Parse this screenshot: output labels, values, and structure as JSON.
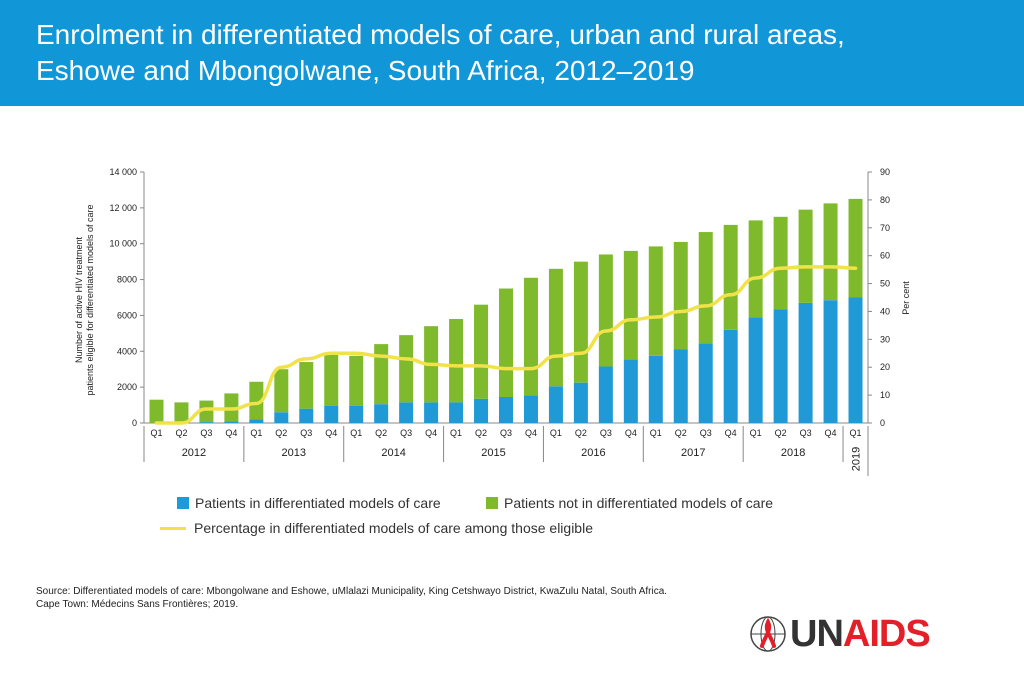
{
  "header": {
    "title_line1": "Enrolment in differentiated models of care, urban and rural areas,",
    "title_line2": "Eshowe and Mbongolwane, South Africa, 2012–2019"
  },
  "colors": {
    "header_bg": "#1196d8",
    "in_dmoc": "#1f9ad6",
    "not_in_dmoc": "#7fba2c",
    "percentage_line": "#f2e24a",
    "logo_red": "#e3202a",
    "logo_dark": "#333333"
  },
  "chart_data": {
    "type": "bar",
    "stacked": true,
    "categories": [
      "Q1",
      "Q2",
      "Q3",
      "Q4",
      "Q1",
      "Q2",
      "Q3",
      "Q4",
      "Q1",
      "Q2",
      "Q3",
      "Q4",
      "Q1",
      "Q2",
      "Q3",
      "Q4",
      "Q1",
      "Q2",
      "Q3",
      "Q4",
      "Q1",
      "Q2",
      "Q3",
      "Q4",
      "Q1",
      "Q2",
      "Q3",
      "Q4",
      "Q1"
    ],
    "year_groups": [
      {
        "label": "2012",
        "count": 4
      },
      {
        "label": "2013",
        "count": 4
      },
      {
        "label": "2014",
        "count": 4
      },
      {
        "label": "2015",
        "count": 4
      },
      {
        "label": "2016",
        "count": 4
      },
      {
        "label": "2017",
        "count": 4
      },
      {
        "label": "2018",
        "count": 4
      },
      {
        "label": "2019",
        "count": 1
      }
    ],
    "series": [
      {
        "name": "Patients in differentiated models of care",
        "axis": "left",
        "values": [
          0,
          0,
          50,
          100,
          200,
          600,
          800,
          950,
          950,
          1050,
          1150,
          1150,
          1150,
          1350,
          1450,
          1550,
          2050,
          2250,
          3150,
          3550,
          3750,
          4100,
          4450,
          5200,
          5900,
          6350,
          6700,
          6850,
          7000
        ]
      },
      {
        "name": "Patients not in differentiated models of care",
        "axis": "left",
        "values": [
          1300,
          1150,
          1200,
          1550,
          2100,
          2400,
          2600,
          2850,
          2800,
          3350,
          3750,
          4250,
          4650,
          5250,
          6050,
          6550,
          6550,
          6750,
          6250,
          6050,
          6100,
          6000,
          6200,
          5850,
          5400,
          5150,
          5200,
          5400,
          5500
        ]
      },
      {
        "name": "Percentage in differentiated models of care among those eligible",
        "axis": "right",
        "type": "line",
        "values": [
          0,
          0,
          5,
          5,
          7,
          20,
          23,
          25,
          25,
          24,
          23,
          21,
          20.5,
          20.5,
          19.5,
          19.5,
          24,
          25,
          33,
          37,
          38,
          40,
          42,
          46,
          52,
          55.5,
          56,
          56,
          55.5
        ]
      }
    ],
    "y_left": {
      "label": "Number of active HIV treatment patients eligible for differentiated models of care",
      "ylim": [
        0,
        14000
      ],
      "ticks": [
        "0",
        "2000",
        "4000",
        "6000",
        "8000",
        "10 000",
        "12 000",
        "14 000"
      ]
    },
    "y_right": {
      "label": "Per cent",
      "ylim": [
        0,
        90
      ],
      "ticks": [
        "0",
        "10",
        "20",
        "30",
        "40",
        "50",
        "60",
        "70",
        "80",
        "90"
      ]
    },
    "legend": {
      "in_label": "Patients in differentiated models of care",
      "not_in_label": "Patients not in differentiated models of care",
      "line_label": "Percentage in differentiated models of care among those eligible"
    }
  },
  "source": {
    "line1": "Source: Differentiated models of care: Mbongolwane and Eshowe, uMlalazi Municipality, King Cetshwayo District, KwaZulu Natal, South Africa.",
    "line2": "Cape Town: Médecins Sans Frontières; 2019."
  },
  "logo": {
    "part1": "UN",
    "part2": "AIDS"
  }
}
